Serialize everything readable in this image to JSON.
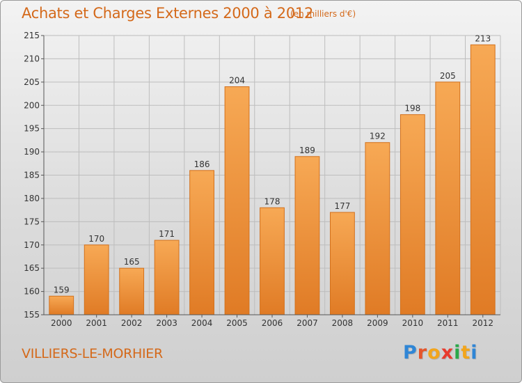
{
  "header": {
    "title": "Achats et Charges Externes 2000 à 2012",
    "subtitle": "(en milliers d'€)"
  },
  "footer": {
    "commune": "VILLIERS-LE-MORHIER",
    "logo_letters": [
      {
        "ch": "P",
        "color": "#2f86d6"
      },
      {
        "ch": "r",
        "color": "#e5552a"
      },
      {
        "ch": "o",
        "color": "#f2a51c"
      },
      {
        "ch": "x",
        "color": "#e83b2e"
      },
      {
        "ch": "i",
        "color": "#2aa84a"
      },
      {
        "ch": "t",
        "color": "#f2a51c"
      },
      {
        "ch": "i",
        "color": "#2f86d6"
      }
    ]
  },
  "colors": {
    "bar_light": "#f7a955",
    "bar_dark": "#e07b25",
    "bar_stroke": "#d3711c",
    "grid": "#bdbdbd",
    "axis": "#555555",
    "text": "#333333"
  },
  "chart_data": {
    "type": "bar",
    "title": "Achats et Charges Externes 2000 à 2012",
    "xlabel": "",
    "ylabel": "",
    "categories": [
      "2000",
      "2001",
      "2002",
      "2003",
      "2004",
      "2005",
      "2006",
      "2007",
      "2008",
      "2009",
      "2010",
      "2011",
      "2012"
    ],
    "values": [
      159,
      170,
      165,
      171,
      186,
      204,
      178,
      189,
      177,
      192,
      198,
      205,
      213
    ],
    "ylim": [
      155,
      215
    ],
    "yticks": [
      155,
      160,
      165,
      170,
      175,
      180,
      185,
      190,
      195,
      200,
      205,
      210,
      215
    ],
    "grid": true,
    "legend": "none"
  }
}
